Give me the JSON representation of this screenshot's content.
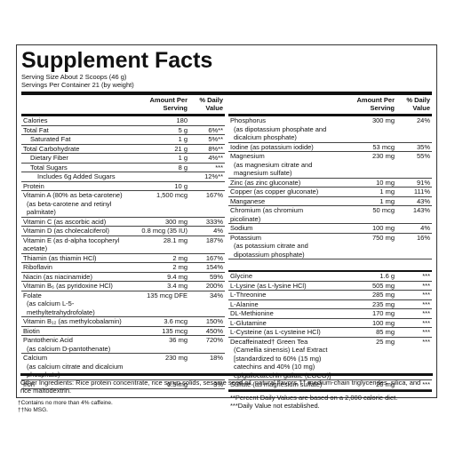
{
  "title": "Supplement Facts",
  "serving_size": "Serving Size About 2 Scoops (46 g)",
  "servings_per_container": "Servings Per Container 21 (by weight)",
  "header": {
    "amount": "Amount Per Serving",
    "dv": "% Daily Value"
  },
  "left": [
    {
      "name": "Calories",
      "amount": "180"
    },
    {
      "name": "Total Fat",
      "amount": "5 g",
      "dv": "6%**",
      "sub_rows": [
        {
          "name": "Saturated Fat",
          "amount": "1 g",
          "dv": "5%**"
        }
      ]
    },
    {
      "name": "Total Carbohydrate",
      "amount": "21 g",
      "dv": "8%**",
      "sub_rows": [
        {
          "name": "Dietary Fiber",
          "amount": "1 g",
          "dv": "4%**"
        },
        {
          "name": "Total Sugars",
          "amount": "8 g",
          "dv": "***",
          "sub_rows": [
            {
              "name": "Includes 6g Added Sugars",
              "dv": "12%**"
            }
          ]
        }
      ]
    },
    {
      "name": "Protein",
      "amount": "10 g"
    },
    {
      "name": "Vitamin A (80% as beta-carotene)",
      "detail": "(as beta-carotene and retinyl palmitate)",
      "amount": "1,500 mcg",
      "dv": "167%"
    },
    {
      "name": "Vitamin C (as ascorbic acid)",
      "amount": "300 mg",
      "dv": "333%"
    },
    {
      "name": "Vitamin D (as cholecalciferol)",
      "amount": "0.8 mcg (35 IU)",
      "dv": "4%"
    },
    {
      "name": "Vitamin E (as d-alpha tocopheryl acetate)",
      "amount": "28.1 mg",
      "dv": "187%"
    },
    {
      "name": "Thiamin (as thiamin HCl)",
      "amount": "2 mg",
      "dv": "167%"
    },
    {
      "name": "Riboflavin",
      "amount": "2 mg",
      "dv": "154%"
    },
    {
      "name": "Niacin (as niacinamide)",
      "amount": "9.4 mg",
      "dv": "59%"
    },
    {
      "name": "Vitamin B₆ (as pyridoxine HCl)",
      "amount": "3.4 mg",
      "dv": "200%"
    },
    {
      "name": "Folate",
      "detail": "(as calcium L-5-methyltetrahydrofolate)",
      "amount": "135 mcg DFE",
      "dv": "34%"
    },
    {
      "name": "Vitamin B₁₂ (as methylcobalamin)",
      "amount": "3.6 mcg",
      "dv": "150%"
    },
    {
      "name": "Biotin",
      "amount": "135 mcg",
      "dv": "450%"
    },
    {
      "name": "Pantothenic Acid",
      "detail": "(as calcium D-pantothenate)",
      "amount": "36 mg",
      "dv": "720%"
    },
    {
      "name": "Calcium",
      "detail": "(as calcium citrate and dicalcium phosphate)",
      "amount": "230 mg",
      "dv": "18%"
    },
    {
      "name": "Iron",
      "amount": "0.5 mg",
      "dv": "3%"
    }
  ],
  "right_top": [
    {
      "name": "Phosphorus",
      "detail": "(as dipotassium phosphate and dicalcium phosphate)",
      "amount": "300 mg",
      "dv": "24%"
    },
    {
      "name": "Iodine (as potassium iodide)",
      "amount": "53 mcg",
      "dv": "35%"
    },
    {
      "name": "Magnesium",
      "detail": "(as magnesium citrate and magnesium sulfate)",
      "amount": "230 mg",
      "dv": "55%"
    },
    {
      "name": "Zinc (as zinc gluconate)",
      "amount": "10 mg",
      "dv": "91%"
    },
    {
      "name": "Copper (as copper gluconate)",
      "amount": "1 mg",
      "dv": "111%"
    },
    {
      "name": "Manganese",
      "amount": "1 mg",
      "dv": "43%"
    },
    {
      "name": "Chromium (as chromium picolinate)",
      "amount": "50 mcg",
      "dv": "143%"
    },
    {
      "name": "Sodium",
      "amount": "100 mg",
      "dv": "4%"
    },
    {
      "name": "Potassium",
      "detail": "(as potassium citrate and dipotassium phosphate)",
      "amount": "750 mg",
      "dv": "16%"
    }
  ],
  "right_bottom": [
    {
      "name": "Glycine",
      "amount": "1.6 g",
      "dv": "***"
    },
    {
      "name": "L-Lysine (as L-lysine HCl)",
      "amount": "505 mg",
      "dv": "***"
    },
    {
      "name": "L-Threonine",
      "amount": "285 mg",
      "dv": "***"
    },
    {
      "name": "L-Alanine",
      "amount": "235 mg",
      "dv": "***"
    },
    {
      "name": "DL-Methionine",
      "amount": "170 mg",
      "dv": "***"
    },
    {
      "name": "L-Glutamine",
      "amount": "100 mg",
      "dv": "***"
    },
    {
      "name": "L-Cysteine (as L-cysteine HCl)",
      "amount": "85 mg",
      "dv": "***"
    },
    {
      "name": "Decaffeinated† Green Tea",
      "detail": "(Camellia sinensis) Leaf Extract [standardized to 60% (15 mg) catechins and 40% (10 mg) epigallocatechin gallate (EGCG)]",
      "amount": "25 mg",
      "dv": "***"
    },
    {
      "name": "Sulfate (as magnesium sulfate)",
      "amount": "20 mg",
      "dv": "***"
    }
  ],
  "dv_notes": [
    "**Percent Daily Values are based on a 2,000 calorie diet.",
    "***Daily Value not established."
  ],
  "other_ingredients": "Other Ingredients: Rice protein concentrate, rice syrup solids, sesame seed oil, natural flavors,†† medium-chain triglycerides, silica, and rice maltodextrin.",
  "footnotes": [
    "†Contains no more than 4% caffeine.",
    "††No MSG."
  ]
}
